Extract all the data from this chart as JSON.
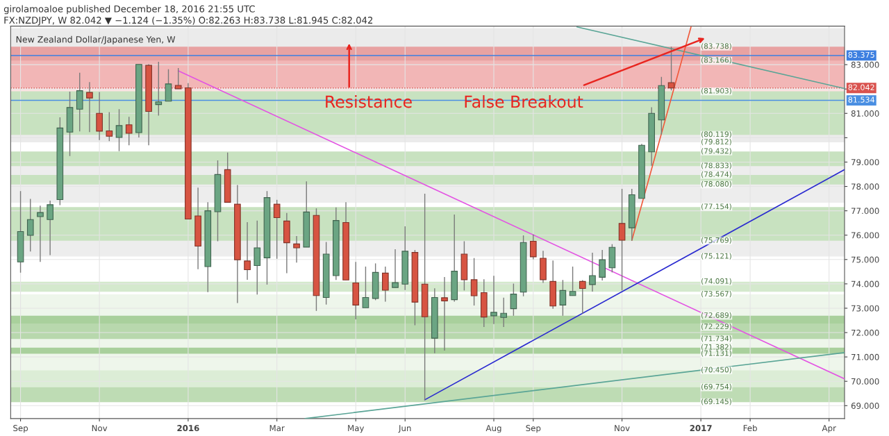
{
  "chart_data": {
    "type": "candlestick",
    "title": "girolamoaloe published December 18, 2016 21:55 UTC",
    "subtitle": "FX:NZDJPY, W 82.042 ▼ −1.124 (−1.35%) O:82.263 H:83.738 L:81.945 C:82.042",
    "x": [
      "2015-09-06",
      "2015-09-13",
      "2015-09-20",
      "2015-09-27",
      "2015-10-04",
      "2015-10-11",
      "2015-10-18",
      "2015-10-25",
      "2015-11-01",
      "2015-11-08",
      "2015-11-15",
      "2015-11-22",
      "2015-11-29",
      "2015-12-06",
      "2015-12-13",
      "2015-12-20",
      "2015-12-27",
      "2016-01-03",
      "2016-01-10",
      "2016-01-17",
      "2016-01-24",
      "2016-01-31",
      "2016-02-07",
      "2016-02-14",
      "2016-02-21",
      "2016-02-28",
      "2016-03-06",
      "2016-03-13",
      "2016-03-20",
      "2016-03-27",
      "2016-04-03",
      "2016-04-10",
      "2016-04-17",
      "2016-04-24",
      "2016-05-01",
      "2016-05-08",
      "2016-05-15",
      "2016-05-22",
      "2016-05-29",
      "2016-06-05",
      "2016-06-12",
      "2016-06-19",
      "2016-06-26",
      "2016-07-03",
      "2016-07-10",
      "2016-07-17",
      "2016-07-24",
      "2016-07-31",
      "2016-08-07",
      "2016-08-14",
      "2016-08-21",
      "2016-08-28",
      "2016-09-04",
      "2016-09-11",
      "2016-09-18",
      "2016-09-25",
      "2016-10-02",
      "2016-10-09",
      "2016-10-16",
      "2016-10-23",
      "2016-10-30",
      "2016-11-06",
      "2016-11-13",
      "2016-11-20",
      "2016-11-27",
      "2016-12-04",
      "2016-12-11"
    ],
    "ohlc": [
      [
        74.9,
        77.81,
        74.46,
        76.15
      ],
      [
        75.99,
        77.49,
        75.33,
        76.64
      ],
      [
        76.76,
        77.21,
        74.9,
        76.93
      ],
      [
        76.64,
        77.42,
        75.18,
        77.25
      ],
      [
        77.46,
        80.84,
        77.23,
        80.4
      ],
      [
        80.23,
        81.89,
        79.25,
        81.24
      ],
      [
        81.17,
        82.67,
        80.26,
        81.93
      ],
      [
        81.86,
        82.28,
        80.23,
        81.63
      ],
      [
        81.0,
        81.88,
        79.9,
        80.27
      ],
      [
        80.28,
        81.05,
        79.86,
        80.06
      ],
      [
        80.01,
        81.17,
        79.45,
        80.5
      ],
      [
        80.53,
        80.86,
        79.69,
        80.18
      ],
      [
        80.21,
        83.01,
        80.01,
        83.01
      ],
      [
        82.97,
        83.02,
        79.69,
        81.08
      ],
      [
        81.36,
        83.12,
        80.91,
        81.47
      ],
      [
        81.5,
        82.81,
        81.5,
        82.21
      ],
      [
        82.15,
        82.86,
        82.01,
        82.01
      ],
      [
        82.05,
        82.24,
        76.66,
        76.66
      ],
      [
        76.79,
        77.95,
        74.6,
        75.55
      ],
      [
        74.71,
        77.35,
        73.66,
        77.0
      ],
      [
        76.96,
        79.07,
        75.75,
        78.49
      ],
      [
        78.69,
        79.39,
        77.35,
        77.35
      ],
      [
        77.27,
        78.06,
        73.21,
        74.99
      ],
      [
        74.94,
        76.53,
        74.17,
        74.58
      ],
      [
        74.75,
        76.6,
        73.56,
        75.48
      ],
      [
        75.07,
        77.81,
        73.97,
        77.54
      ],
      [
        77.27,
        77.45,
        75.03,
        76.72
      ],
      [
        76.58,
        76.91,
        74.44,
        75.69
      ],
      [
        75.64,
        75.96,
        74.87,
        75.48
      ],
      [
        75.51,
        78.21,
        75.51,
        76.95
      ],
      [
        76.81,
        77.1,
        72.89,
        73.52
      ],
      [
        73.44,
        75.72,
        73.15,
        75.22
      ],
      [
        74.34,
        77.14,
        74.16,
        76.6
      ],
      [
        76.52,
        77.35,
        74.16,
        74.16
      ],
      [
        74.04,
        74.9,
        72.54,
        73.13
      ],
      [
        73.02,
        74.71,
        73.02,
        73.44
      ],
      [
        73.4,
        74.84,
        73.33,
        74.47
      ],
      [
        74.44,
        74.71,
        73.27,
        73.74
      ],
      [
        73.85,
        75.42,
        73.85,
        74.05
      ],
      [
        73.99,
        76.36,
        73.75,
        75.34
      ],
      [
        75.29,
        75.39,
        72.3,
        73.25
      ],
      [
        73.99,
        77.7,
        69.22,
        72.65
      ],
      [
        71.77,
        73.82,
        71.15,
        73.44
      ],
      [
        73.43,
        74.28,
        71.26,
        73.3
      ],
      [
        73.35,
        76.85,
        73.27,
        74.52
      ],
      [
        75.22,
        75.75,
        73.73,
        74.17
      ],
      [
        74.17,
        75.06,
        73.11,
        73.51
      ],
      [
        73.64,
        74.19,
        72.23,
        72.64
      ],
      [
        72.69,
        74.33,
        72.35,
        72.83
      ],
      [
        72.62,
        73.43,
        72.23,
        72.79
      ],
      [
        72.98,
        74.01,
        72.69,
        73.58
      ],
      [
        73.66,
        75.99,
        73.49,
        75.7
      ],
      [
        75.75,
        76.03,
        75.01,
        75.11
      ],
      [
        75.05,
        75.36,
        74.04,
        74.17
      ],
      [
        74.1,
        74.96,
        72.98,
        73.09
      ],
      [
        73.13,
        74.16,
        72.69,
        73.73
      ],
      [
        73.52,
        74.71,
        73.52,
        73.69
      ],
      [
        74.1,
        74.15,
        72.78,
        73.81
      ],
      [
        73.97,
        75.28,
        73.68,
        74.34
      ],
      [
        74.27,
        75.39,
        74.14,
        74.99
      ],
      [
        74.66,
        75.63,
        74.47,
        75.5
      ],
      [
        76.48,
        77.9,
        73.73,
        75.79
      ],
      [
        76.3,
        77.9,
        75.77,
        77.66
      ],
      [
        77.51,
        79.75,
        77.51,
        79.69
      ],
      [
        79.42,
        81.25,
        78.85,
        81.0
      ],
      [
        80.73,
        82.5,
        80.13,
        82.14
      ],
      [
        82.263,
        83.738,
        81.945,
        82.042
      ]
    ],
    "colors": [
      "#6ba583",
      "#6ba583",
      "#6ba583",
      "#6ba583",
      "#6ba583",
      "#6ba583",
      "#6ba583",
      "#d75442",
      "#d75442",
      "#d75442",
      "#6ba583",
      "#d75442",
      "#6ba583",
      "#d75442",
      "#6ba583",
      "#6ba583",
      "#d75442",
      "#d75442",
      "#d75442",
      "#6ba583",
      "#6ba583",
      "#d75442",
      "#d75442",
      "#d75442",
      "#6ba583",
      "#6ba583",
      "#d75442",
      "#d75442",
      "#d75442",
      "#6ba583",
      "#d75442",
      "#6ba583",
      "#6ba583",
      "#d75442",
      "#d75442",
      "#6ba583",
      "#6ba583",
      "#d75442",
      "#6ba583",
      "#6ba583",
      "#d75442",
      "#d75442",
      "#6ba583",
      "#d75442",
      "#6ba583",
      "#d75442",
      "#d75442",
      "#d75442",
      "#6ba583",
      "#6ba583",
      "#6ba583",
      "#6ba583",
      "#d75442",
      "#d75442",
      "#d75442",
      "#6ba583",
      "#6ba583",
      "#d75442",
      "#6ba583",
      "#6ba583",
      "#6ba583",
      "#d75442",
      "#6ba583",
      "#6ba583",
      "#6ba583",
      "#6ba583",
      "#d75442"
    ],
    "series": [
      {
        "type": "line",
        "color": "#e354e3",
        "x": [
          "2015-12-27",
          "2017-04-13"
        ],
        "values": [
          82.75,
          70.1
        ]
      },
      {
        "type": "line",
        "color": "#2a2ad0",
        "x": [
          "2016-06-19",
          "2017-04-13"
        ],
        "values": [
          69.24,
          78.69
        ]
      },
      {
        "type": "line",
        "color": "#5aa596",
        "x": [
          "2016-03-26",
          "2017-04-13"
        ],
        "values": [
          68.47,
          71.18
        ]
      },
      {
        "type": "line",
        "color": "#5aa596",
        "x": [
          "2016-10-05",
          "2017-04-13"
        ],
        "values": [
          84.55,
          82.02
        ]
      },
      {
        "type": "line",
        "color": "#f05a3c",
        "x": [
          "2016-11-13",
          "2016-12-25"
        ],
        "values": [
          75.79,
          84.55
        ]
      }
    ],
    "bands": [
      {
        "axis": "y",
        "from": 83.41,
        "to": 84.5,
        "color": "#ebebeb"
      },
      {
        "axis": "y",
        "from": 82.042,
        "to": 83.375,
        "color": "#f2b6b6"
      },
      {
        "axis": "y",
        "from": 81.0,
        "to": 82.042,
        "color": "#fbe3e3"
      },
      {
        "axis": "y",
        "from": 83.166,
        "to": 83.738,
        "color": "#e8a2a2"
      },
      {
        "axis": "y",
        "from": 79.812,
        "to": 80.8,
        "color": "#ebebeb"
      },
      {
        "axis": "y",
        "from": 80.119,
        "to": 81.903,
        "color": "#c8e2c0"
      },
      {
        "axis": "y",
        "from": 77.329,
        "to": 79.432,
        "color": "#ededed"
      },
      {
        "axis": "y",
        "from": 78.833,
        "to": 79.432,
        "color": "#c8e2c0"
      },
      {
        "axis": "y",
        "from": 78.08,
        "to": 78.474,
        "color": "#c8e2c0"
      },
      {
        "axis": "y",
        "from": 75.121,
        "to": 76.842,
        "color": "#ededed"
      },
      {
        "axis": "y",
        "from": 75.769,
        "to": 77.154,
        "color": "#c8e2c0"
      },
      {
        "axis": "y",
        "from": 73.677,
        "to": 74.091,
        "color": "#d4e9cd"
      },
      {
        "axis": "y",
        "from": 69.145,
        "to": 73.567,
        "color": "#eef6eb"
      },
      {
        "axis": "y",
        "from": 72.229,
        "to": 72.689,
        "color": "#a9d09c"
      },
      {
        "axis": "y",
        "from": 71.734,
        "to": 72.368,
        "color": "#b8d8ad"
      },
      {
        "axis": "y",
        "from": 71.131,
        "to": 71.382,
        "color": "#a9d09c"
      },
      {
        "axis": "y",
        "from": 69.754,
        "to": 70.45,
        "color": "#dcedd6"
      },
      {
        "axis": "y",
        "from": 69.145,
        "to": 69.754,
        "color": "#bedcb4"
      }
    ],
    "ref_lines": [
      {
        "axis": "y",
        "value": 83.375,
        "label": "83.375",
        "color": "#3d7fe0",
        "line_style": "solid"
      },
      {
        "axis": "y",
        "value": 82.042,
        "label": "82.042",
        "color": "#d9534f",
        "line_style": "dotted"
      },
      {
        "axis": "y",
        "value": 81.534,
        "label": "81.534",
        "color": "#4a8fe2",
        "line_style": "solid"
      }
    ],
    "annotations": [
      "New Zealand Dollar/Japanese Yen, W",
      {
        "text": "Resistance",
        "x": "2016-05-10",
        "y": 81.42
      },
      {
        "text": "False Breakout",
        "x": "2016-08-28",
        "y": 81.42
      },
      {
        "text": "(83.738)",
        "x": "2017-01-12",
        "y": 83.738
      },
      {
        "text": "(83.166)",
        "x": "2017-01-12",
        "y": 83.166
      },
      {
        "text": "(81.903)",
        "x": "2017-01-12",
        "y": 81.903
      },
      {
        "text": "(80.119)",
        "x": "2017-01-12",
        "y": 80.119
      },
      {
        "text": "(79.812)",
        "x": "2017-01-12",
        "y": 79.812
      },
      {
        "text": "(79.432)",
        "x": "2017-01-12",
        "y": 79.432
      },
      {
        "text": "(78.833)",
        "x": "2017-01-12",
        "y": 78.833
      },
      {
        "text": "(78.474)",
        "x": "2017-01-12",
        "y": 78.474
      },
      {
        "text": "(78.080)",
        "x": "2017-01-12",
        "y": 78.08
      },
      {
        "text": "(77.154)",
        "x": "2017-01-12",
        "y": 77.154
      },
      {
        "text": "(75.769)",
        "x": "2017-01-12",
        "y": 75.769
      },
      {
        "text": "(75.121)",
        "x": "2017-01-12",
        "y": 75.121
      },
      {
        "text": "(74.091)",
        "x": "2017-01-12",
        "y": 74.091
      },
      {
        "text": "(73.567)",
        "x": "2017-01-12",
        "y": 73.567
      },
      {
        "text": "(72.689)",
        "x": "2017-01-12",
        "y": 72.689
      },
      {
        "text": "(72.229)",
        "x": "2017-01-12",
        "y": 72.229
      },
      {
        "text": "(71.734)",
        "x": "2017-01-12",
        "y": 71.734
      },
      {
        "text": "(71.382)",
        "x": "2017-01-12",
        "y": 71.382
      },
      {
        "text": "(71.131)",
        "x": "2017-01-12",
        "y": 71.131
      },
      {
        "text": "(70.450)",
        "x": "2017-01-12",
        "y": 70.45
      },
      {
        "text": "(69.754)",
        "x": "2017-01-12",
        "y": 69.754
      },
      {
        "text": "(69.145)",
        "x": "2017-01-12",
        "y": 69.145
      }
    ],
    "xlim": [
      "2015-08-30",
      "2017-04-13"
    ],
    "xticks": [
      {
        "value": "2015-09-06",
        "label": "Sep"
      },
      {
        "value": "2015-11-01",
        "label": "Nov"
      },
      {
        "value": "2016-01-03",
        "label": "2016"
      },
      {
        "value": "2016-03-06",
        "label": "Mar"
      },
      {
        "value": "2016-05-01",
        "label": "May"
      },
      {
        "value": "2016-06-05",
        "label": "Jun"
      },
      {
        "value": "2016-08-07",
        "label": "Aug"
      },
      {
        "value": "2016-09-04",
        "label": "Sep"
      },
      {
        "value": "2016-11-06",
        "label": "Nov"
      },
      {
        "value": "2017-01-01",
        "label": "2017"
      },
      {
        "value": "2017-02-05",
        "label": "Feb"
      },
      {
        "value": "2017-04-02",
        "label": "Apr"
      }
    ],
    "ylim": [
      68.47,
      84.58
    ],
    "yticks": [
      {
        "value": 69,
        "label": "69.000"
      },
      {
        "value": 70,
        "label": "70.000"
      },
      {
        "value": 71,
        "label": "71.000"
      },
      {
        "value": 72,
        "label": "72.000"
      },
      {
        "value": 73,
        "label": "73.000"
      },
      {
        "value": 74,
        "label": "74.000"
      },
      {
        "value": 75,
        "label": "75.000"
      },
      {
        "value": 76,
        "label": "76.000"
      },
      {
        "value": 77,
        "label": "77.000"
      },
      {
        "value": 78,
        "label": "78.000"
      },
      {
        "value": 79,
        "label": "79.000"
      },
      {
        "value": 80,
        "label": null
      },
      {
        "value": 81,
        "label": "81.000"
      },
      {
        "value": 82,
        "label": null
      },
      {
        "value": 83,
        "label": "83.000"
      }
    ],
    "grid": true
  }
}
